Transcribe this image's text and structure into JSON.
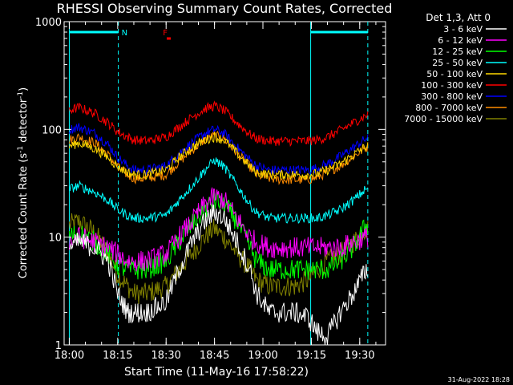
{
  "chart_data": {
    "type": "line",
    "title": "RHESSI Observing Summary Count Rates, Corrected",
    "xlabel": "Start Time (11-May-16 17:58:22)",
    "ylabel_parts": [
      "Corrected Count Rate (s",
      "-1",
      " detector",
      "-1",
      ")"
    ],
    "yscale": "log",
    "ylim": [
      1,
      1000
    ],
    "y_ticks": [
      {
        "value": 1,
        "label": "1"
      },
      {
        "value": 10,
        "label": "10"
      },
      {
        "value": 100,
        "label": "100"
      },
      {
        "value": 1000,
        "label": "1000"
      }
    ],
    "xlim_min": [
      -1.6,
      98
    ],
    "x_ticks": [
      {
        "min": 0,
        "label": "18:00"
      },
      {
        "min": 15,
        "label": "18:15"
      },
      {
        "min": 30,
        "label": "18:30"
      },
      {
        "min": 45,
        "label": "18:45"
      },
      {
        "min": 60,
        "label": "19:00"
      },
      {
        "min": 75,
        "label": "19:15"
      },
      {
        "min": 90,
        "label": "19:30"
      }
    ],
    "legend_title": "Det 1,3, Att 0",
    "legend_position": "top-right outside",
    "series": [
      {
        "name": "3 - 6 keV",
        "color": "#ffffff",
        "values": [
          {
            "x": 0,
            "y": 8
          },
          {
            "x": 3,
            "y": 9
          },
          {
            "x": 8,
            "y": 8
          },
          {
            "x": 12,
            "y": 6
          },
          {
            "x": 15,
            "y": 3
          },
          {
            "x": 18,
            "y": 2
          },
          {
            "x": 20,
            "y": 2
          },
          {
            "x": 24,
            "y": 2
          },
          {
            "x": 30,
            "y": 2.5
          },
          {
            "x": 34,
            "y": 5
          },
          {
            "x": 38,
            "y": 9
          },
          {
            "x": 42,
            "y": 14
          },
          {
            "x": 45,
            "y": 17
          },
          {
            "x": 48,
            "y": 15
          },
          {
            "x": 52,
            "y": 9
          },
          {
            "x": 56,
            "y": 5
          },
          {
            "x": 58,
            "y": 3
          },
          {
            "x": 62,
            "y": 2
          },
          {
            "x": 66,
            "y": 2
          },
          {
            "x": 70,
            "y": 2
          },
          {
            "x": 74,
            "y": 1.8
          },
          {
            "x": 77,
            "y": 1.3
          },
          {
            "x": 80,
            "y": 1.2
          },
          {
            "x": 84,
            "y": 2
          },
          {
            "x": 88,
            "y": 3
          },
          {
            "x": 92,
            "y": 5
          }
        ]
      },
      {
        "name": "6 - 12 keV",
        "color": "#ff00ff",
        "values": [
          {
            "x": 0,
            "y": 9
          },
          {
            "x": 3,
            "y": 10
          },
          {
            "x": 8,
            "y": 9
          },
          {
            "x": 12,
            "y": 8
          },
          {
            "x": 15,
            "y": 7
          },
          {
            "x": 18,
            "y": 6
          },
          {
            "x": 20,
            "y": 6
          },
          {
            "x": 24,
            "y": 6
          },
          {
            "x": 30,
            "y": 7
          },
          {
            "x": 34,
            "y": 10
          },
          {
            "x": 38,
            "y": 14
          },
          {
            "x": 42,
            "y": 20
          },
          {
            "x": 45,
            "y": 24
          },
          {
            "x": 48,
            "y": 22
          },
          {
            "x": 52,
            "y": 15
          },
          {
            "x": 56,
            "y": 10
          },
          {
            "x": 58,
            "y": 9
          },
          {
            "x": 62,
            "y": 8
          },
          {
            "x": 66,
            "y": 8
          },
          {
            "x": 70,
            "y": 8
          },
          {
            "x": 74,
            "y": 8
          },
          {
            "x": 77,
            "y": 8
          },
          {
            "x": 80,
            "y": 8
          },
          {
            "x": 84,
            "y": 8
          },
          {
            "x": 88,
            "y": 9
          },
          {
            "x": 92,
            "y": 10
          }
        ]
      },
      {
        "name": "12 - 25 keV",
        "color": "#00ff00",
        "values": [
          {
            "x": 0,
            "y": 10
          },
          {
            "x": 3,
            "y": 11
          },
          {
            "x": 8,
            "y": 9
          },
          {
            "x": 12,
            "y": 7
          },
          {
            "x": 15,
            "y": 5.5
          },
          {
            "x": 18,
            "y": 5
          },
          {
            "x": 20,
            "y": 5
          },
          {
            "x": 24,
            "y": 5
          },
          {
            "x": 30,
            "y": 6
          },
          {
            "x": 34,
            "y": 9
          },
          {
            "x": 38,
            "y": 13
          },
          {
            "x": 42,
            "y": 18
          },
          {
            "x": 45,
            "y": 22
          },
          {
            "x": 48,
            "y": 20
          },
          {
            "x": 52,
            "y": 14
          },
          {
            "x": 56,
            "y": 8
          },
          {
            "x": 58,
            "y": 6
          },
          {
            "x": 62,
            "y": 5
          },
          {
            "x": 66,
            "y": 5
          },
          {
            "x": 70,
            "y": 5
          },
          {
            "x": 74,
            "y": 5
          },
          {
            "x": 77,
            "y": 5
          },
          {
            "x": 80,
            "y": 5
          },
          {
            "x": 84,
            "y": 6
          },
          {
            "x": 88,
            "y": 8
          },
          {
            "x": 92,
            "y": 13
          }
        ]
      },
      {
        "name": "25 - 50 keV",
        "color": "#00ffff",
        "values": [
          {
            "x": 0,
            "y": 28
          },
          {
            "x": 3,
            "y": 30
          },
          {
            "x": 8,
            "y": 26
          },
          {
            "x": 12,
            "y": 22
          },
          {
            "x": 15,
            "y": 18
          },
          {
            "x": 18,
            "y": 16
          },
          {
            "x": 20,
            "y": 15
          },
          {
            "x": 24,
            "y": 15
          },
          {
            "x": 30,
            "y": 16
          },
          {
            "x": 34,
            "y": 22
          },
          {
            "x": 38,
            "y": 30
          },
          {
            "x": 42,
            "y": 42
          },
          {
            "x": 45,
            "y": 52
          },
          {
            "x": 48,
            "y": 45
          },
          {
            "x": 52,
            "y": 30
          },
          {
            "x": 56,
            "y": 20
          },
          {
            "x": 58,
            "y": 17
          },
          {
            "x": 62,
            "y": 15
          },
          {
            "x": 66,
            "y": 15
          },
          {
            "x": 70,
            "y": 15
          },
          {
            "x": 74,
            "y": 15
          },
          {
            "x": 77,
            "y": 15
          },
          {
            "x": 80,
            "y": 16
          },
          {
            "x": 84,
            "y": 18
          },
          {
            "x": 88,
            "y": 22
          },
          {
            "x": 92,
            "y": 28
          }
        ]
      },
      {
        "name": "50 - 100 keV",
        "color": "#ffd700",
        "values": [
          {
            "x": 0,
            "y": 70
          },
          {
            "x": 3,
            "y": 75
          },
          {
            "x": 8,
            "y": 66
          },
          {
            "x": 12,
            "y": 55
          },
          {
            "x": 15,
            "y": 45
          },
          {
            "x": 18,
            "y": 40
          },
          {
            "x": 20,
            "y": 38
          },
          {
            "x": 24,
            "y": 38
          },
          {
            "x": 30,
            "y": 42
          },
          {
            "x": 34,
            "y": 55
          },
          {
            "x": 38,
            "y": 68
          },
          {
            "x": 42,
            "y": 80
          },
          {
            "x": 45,
            "y": 85
          },
          {
            "x": 48,
            "y": 80
          },
          {
            "x": 52,
            "y": 60
          },
          {
            "x": 56,
            "y": 45
          },
          {
            "x": 58,
            "y": 40
          },
          {
            "x": 62,
            "y": 38
          },
          {
            "x": 66,
            "y": 38
          },
          {
            "x": 70,
            "y": 38
          },
          {
            "x": 74,
            "y": 38
          },
          {
            "x": 77,
            "y": 39
          },
          {
            "x": 80,
            "y": 42
          },
          {
            "x": 84,
            "y": 48
          },
          {
            "x": 88,
            "y": 58
          },
          {
            "x": 92,
            "y": 70
          }
        ]
      },
      {
        "name": "100 - 300 keV",
        "color": "#ff0000",
        "values": [
          {
            "x": 0,
            "y": 150
          },
          {
            "x": 3,
            "y": 160
          },
          {
            "x": 8,
            "y": 140
          },
          {
            "x": 12,
            "y": 115
          },
          {
            "x": 15,
            "y": 95
          },
          {
            "x": 18,
            "y": 85
          },
          {
            "x": 20,
            "y": 80
          },
          {
            "x": 24,
            "y": 78
          },
          {
            "x": 30,
            "y": 85
          },
          {
            "x": 34,
            "y": 105
          },
          {
            "x": 38,
            "y": 130
          },
          {
            "x": 42,
            "y": 155
          },
          {
            "x": 45,
            "y": 165
          },
          {
            "x": 48,
            "y": 150
          },
          {
            "x": 52,
            "y": 115
          },
          {
            "x": 56,
            "y": 90
          },
          {
            "x": 58,
            "y": 82
          },
          {
            "x": 62,
            "y": 78
          },
          {
            "x": 66,
            "y": 78
          },
          {
            "x": 70,
            "y": 78
          },
          {
            "x": 74,
            "y": 78
          },
          {
            "x": 77,
            "y": 80
          },
          {
            "x": 80,
            "y": 85
          },
          {
            "x": 84,
            "y": 98
          },
          {
            "x": 88,
            "y": 115
          },
          {
            "x": 92,
            "y": 135
          }
        ]
      },
      {
        "name": "300 - 800 keV",
        "color": "#0000ff",
        "values": [
          {
            "x": 0,
            "y": 100
          },
          {
            "x": 3,
            "y": 105
          },
          {
            "x": 8,
            "y": 92
          },
          {
            "x": 12,
            "y": 72
          },
          {
            "x": 15,
            "y": 55
          },
          {
            "x": 18,
            "y": 46
          },
          {
            "x": 20,
            "y": 42
          },
          {
            "x": 24,
            "y": 42
          },
          {
            "x": 30,
            "y": 46
          },
          {
            "x": 34,
            "y": 60
          },
          {
            "x": 38,
            "y": 75
          },
          {
            "x": 42,
            "y": 92
          },
          {
            "x": 45,
            "y": 100
          },
          {
            "x": 48,
            "y": 92
          },
          {
            "x": 52,
            "y": 68
          },
          {
            "x": 56,
            "y": 52
          },
          {
            "x": 58,
            "y": 46
          },
          {
            "x": 62,
            "y": 42
          },
          {
            "x": 66,
            "y": 42
          },
          {
            "x": 70,
            "y": 42
          },
          {
            "x": 74,
            "y": 42
          },
          {
            "x": 77,
            "y": 44
          },
          {
            "x": 80,
            "y": 48
          },
          {
            "x": 84,
            "y": 56
          },
          {
            "x": 88,
            "y": 68
          },
          {
            "x": 92,
            "y": 82
          }
        ]
      },
      {
        "name": "800 - 7000 keV",
        "color": "#ff8c00",
        "values": [
          {
            "x": 0,
            "y": 80
          },
          {
            "x": 3,
            "y": 85
          },
          {
            "x": 8,
            "y": 75
          },
          {
            "x": 12,
            "y": 58
          },
          {
            "x": 15,
            "y": 45
          },
          {
            "x": 18,
            "y": 38
          },
          {
            "x": 20,
            "y": 35
          },
          {
            "x": 24,
            "y": 35
          },
          {
            "x": 30,
            "y": 38
          },
          {
            "x": 34,
            "y": 50
          },
          {
            "x": 38,
            "y": 64
          },
          {
            "x": 42,
            "y": 80
          },
          {
            "x": 45,
            "y": 88
          },
          {
            "x": 48,
            "y": 82
          },
          {
            "x": 52,
            "y": 60
          },
          {
            "x": 56,
            "y": 45
          },
          {
            "x": 58,
            "y": 38
          },
          {
            "x": 62,
            "y": 35
          },
          {
            "x": 66,
            "y": 34
          },
          {
            "x": 70,
            "y": 34
          },
          {
            "x": 74,
            "y": 34
          },
          {
            "x": 77,
            "y": 36
          },
          {
            "x": 80,
            "y": 40
          },
          {
            "x": 84,
            "y": 46
          },
          {
            "x": 88,
            "y": 56
          },
          {
            "x": 92,
            "y": 68
          }
        ]
      },
      {
        "name": "7000 - 15000 keV",
        "color": "#808000",
        "values": [
          {
            "x": 0,
            "y": 13
          },
          {
            "x": 3,
            "y": 14
          },
          {
            "x": 8,
            "y": 11
          },
          {
            "x": 12,
            "y": 7
          },
          {
            "x": 15,
            "y": 4.5
          },
          {
            "x": 18,
            "y": 3.5
          },
          {
            "x": 20,
            "y": 3
          },
          {
            "x": 24,
            "y": 3
          },
          {
            "x": 30,
            "y": 3.5
          },
          {
            "x": 34,
            "y": 5
          },
          {
            "x": 38,
            "y": 7
          },
          {
            "x": 42,
            "y": 10
          },
          {
            "x": 45,
            "y": 12
          },
          {
            "x": 48,
            "y": 10
          },
          {
            "x": 52,
            "y": 7
          },
          {
            "x": 56,
            "y": 5
          },
          {
            "x": 58,
            "y": 4
          },
          {
            "x": 62,
            "y": 3.5
          },
          {
            "x": 66,
            "y": 3.5
          },
          {
            "x": 70,
            "y": 3.5
          },
          {
            "x": 74,
            "y": 4
          },
          {
            "x": 77,
            "y": 5
          },
          {
            "x": 80,
            "y": 6
          },
          {
            "x": 84,
            "y": 7
          },
          {
            "x": 88,
            "y": 9
          },
          {
            "x": 92,
            "y": 12
          }
        ]
      }
    ],
    "annotations": [
      {
        "text": "N",
        "color": "#00ffff",
        "x": 16.2,
        "kind": "night-marker"
      },
      {
        "text": "F",
        "color": "#ff0000",
        "x": 29,
        "kind": "flag"
      }
    ],
    "vlines": [
      {
        "x": 0,
        "color": "#00ffff",
        "style": "solid"
      },
      {
        "x": 15.2,
        "color": "#00ffff",
        "style": "dashed"
      },
      {
        "x": 74.8,
        "color": "#00ffff",
        "style": "solid"
      },
      {
        "x": 92.5,
        "color": "#00ffff",
        "style": "dashed"
      }
    ],
    "night_bars": [
      {
        "x0": 0,
        "x1": 15.2,
        "y": 800,
        "color": "#00ffff"
      },
      {
        "x0": 74.8,
        "x1": 92.5,
        "y": 800,
        "color": "#00ffff"
      }
    ],
    "flag_mark": {
      "x": 30.2,
      "y": 700,
      "color": "#ff0000"
    }
  },
  "footer_stamp": "31-Aug-2022 18:28"
}
